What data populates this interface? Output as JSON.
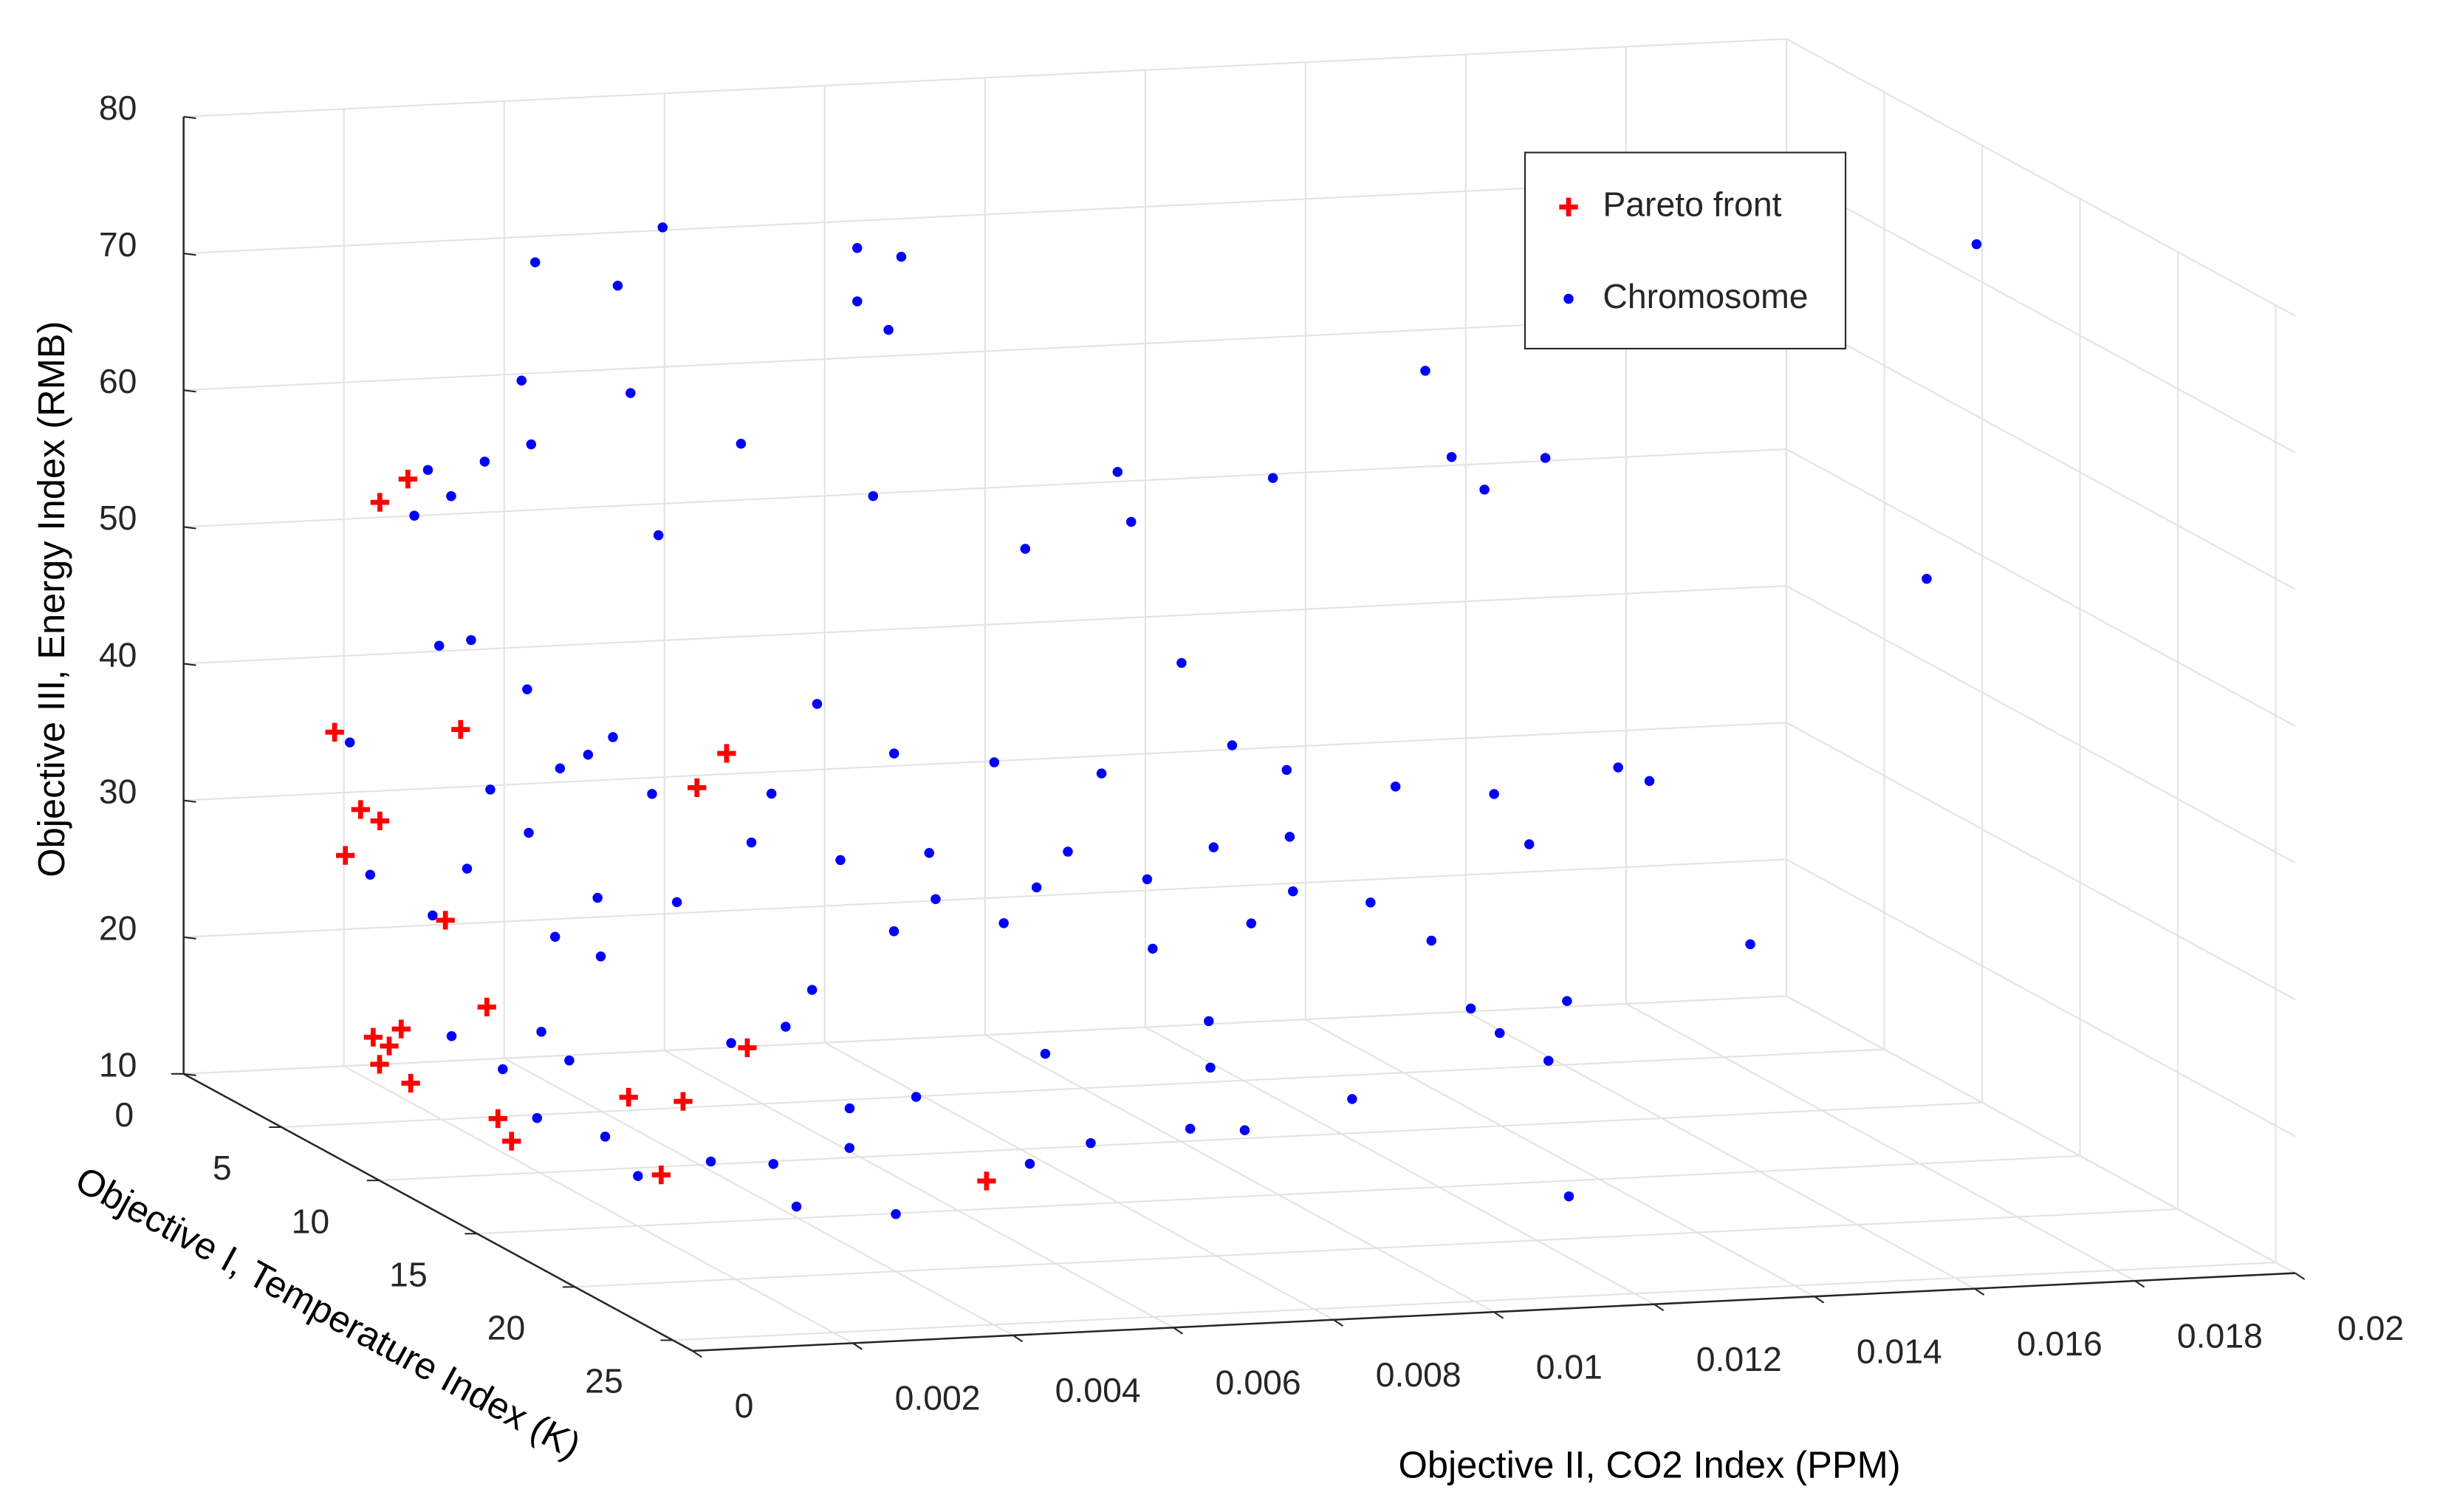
{
  "chart_data": {
    "type": "scatter3d",
    "xlabel": "Objective II, CO2 Index (PPM)",
    "ylabel": "Objective I, Temperature Index (K)",
    "zlabel": "Objective III, Energy Index (RMB)",
    "xlim": [
      0,
      0.02
    ],
    "ylim": [
      0,
      26
    ],
    "zlim": [
      10,
      80
    ],
    "xticks": [
      0,
      0.002,
      0.004,
      0.006,
      0.008,
      0.01,
      0.012,
      0.014,
      0.016,
      0.018,
      0.02
    ],
    "yticks": [
      0,
      5,
      10,
      15,
      20,
      25
    ],
    "zticks": [
      10,
      20,
      30,
      40,
      50,
      60,
      70,
      80
    ],
    "grid": true,
    "legend": "upper right",
    "series": [
      {
        "name": "Pareto front",
        "color": "#ff0000",
        "marker": "plus",
        "x": [
          0.00231,
          0.00196,
          0.00164,
          0.00248,
          0.00531,
          0.00494,
          0.00172,
          0.00196,
          0.00153,
          0.00229,
          0.00183,
          0.00125,
          0.0009,
          0.0011,
          0.00098,
          0.00088,
          0.00148,
          0.00165,
          0.00311,
          0.00379,
          0.00254,
          0.00508,
          0.0066
        ],
        "y": [
          2,
          2,
          1,
          4,
          6,
          6,
          2,
          2,
          2,
          4,
          8,
          6,
          6,
          6,
          6,
          8,
          10,
          10,
          10,
          10,
          14,
          8,
          14
        ],
        "z": [
          54.4,
          52.8,
          35.3,
          37.6,
          36.6,
          34.2,
          30.4,
          29.5,
          27.1,
          23.7,
          20.6,
          17.6,
          17.1,
          16.4,
          15.1,
          15.3,
          14.1,
          12.4,
          15.2,
          14.7,
          12.8,
          16.7,
          11.2
        ]
      },
      {
        "name": "Chromosome",
        "color": "#0000ff",
        "marker": "dot",
        "x": [
          0.005,
          0.00341,
          0.00694,
          0.00749,
          0.00444,
          0.00694,
          0.00733,
          0.00324,
          0.0046,
          0.00549,
          0.00336,
          0.00278,
          0.00256,
          0.00285,
          0.00665,
          0.00446,
          0.00239,
          0.00806,
          0.0097,
          0.00987,
          0.01115,
          0.01354,
          0.01338,
          0.01379,
          0.01455,
          0.01993,
          0.01882,
          0.01001,
          0.00261,
          0.00331,
          0.00644,
          0.01497,
          0.01536,
          0.01268,
          0.01391,
          0.01386,
          0.01613,
          0.01113,
          0.01181,
          0.00865,
          0.0074,
          0.0095,
          0.00735,
          0.00673,
          0.00562,
          0.01136,
          0.00908,
          0.01041,
          0.01188,
          0.01264,
          0.0114,
          0.00743,
          0.00828,
          0.00965,
          0.01088,
          0.00372,
          0.00438,
          0.00438,
          0.00333,
          0.0037,
          0.00317,
          0.00469,
          0.00213,
          0.00256,
          0.00184,
          0.00183,
          0.0027,
          0.0054,
          0.00374,
          0.00139,
          0.00251,
          0.00154,
          0.00237,
          0.00148,
          0.00233,
          0.00225,
          0.00316,
          0.00394,
          0.00374,
          0.00498,
          0.00489,
          0.00538,
          0.00621,
          0.00714,
          0.0079,
          0.00831,
          0.01035,
          0.01037,
          0.00963,
          0.01031,
          0.01165,
          0.01362,
          0.01398,
          0.01482,
          0.0141,
          0.01289,
          0.00869,
          0.01007,
          0.00439,
          0.00507,
          0.00407,
          0.00285,
          0.00587,
          0.00691
        ],
        "y": [
          4,
          4,
          6,
          6,
          4,
          6,
          6,
          4,
          4,
          6,
          4,
          4,
          2,
          2,
          8,
          6,
          2,
          10,
          8,
          8,
          10,
          8,
          10,
          10,
          10,
          10,
          12,
          10,
          4,
          4,
          6,
          12,
          12,
          10,
          10,
          12,
          14,
          8,
          8,
          6,
          6,
          8,
          8,
          6,
          6,
          10,
          8,
          10,
          12,
          12,
          10,
          8,
          8,
          10,
          10,
          4,
          4,
          6,
          4,
          6,
          6,
          6,
          4,
          4,
          2,
          1,
          2,
          10,
          6,
          8,
          8,
          10,
          10,
          12,
          12,
          14,
          14,
          14,
          16,
          16,
          14,
          12,
          12,
          14,
          14,
          10,
          10,
          10,
          12,
          12,
          12,
          10,
          10,
          10,
          12,
          18,
          8,
          8,
          10,
          10,
          4,
          4,
          6,
          8
        ],
        "z": [
          73.6,
          71.5,
          73.1,
          72.3,
          69.5,
          69.2,
          67.0,
          62.9,
          61.6,
          59.2,
          58.2,
          57.1,
          55.0,
          53.0,
          56.6,
          52.8,
          51.7,
          53.9,
          57.5,
          53.8,
          58.2,
          63.8,
          59.1,
          56.6,
          58.7,
          72.8,
          50.2,
          45.0,
          44.1,
          40.3,
          39.9,
          37.5,
          36.4,
          35.2,
          34.3,
          32.2,
          25.8,
          37.1,
          35.1,
          35.0,
          36.0,
          35.5,
          30.3,
          28.4,
          30.0,
          31.9,
          29.9,
          31.4,
          28.5,
          25.5,
          27.9,
          26.9,
          24.9,
          24.2,
          25.7,
          34.4,
          36.5,
          33.9,
          29.8,
          26.5,
          23.8,
          25.9,
          24.1,
          27.4,
          25.6,
          34.5,
          42.1,
          22.4,
          22.2,
          18.6,
          18.6,
          17.7,
          18.1,
          15.7,
          14.1,
          12.8,
          13.6,
          13.2,
          11.7,
          10.8,
          14.1,
          15.3,
          15.9,
          12.3,
          13.6,
          16.9,
          18.7,
          15.3,
          12.6,
          12.3,
          14.2,
          18.7,
          16.8,
          18.9,
          16.3,
          11.4,
          27.4,
          27.6,
          18.8,
          19.8,
          35.3,
          33.1,
          33.5,
          24.7
        ]
      }
    ]
  }
}
